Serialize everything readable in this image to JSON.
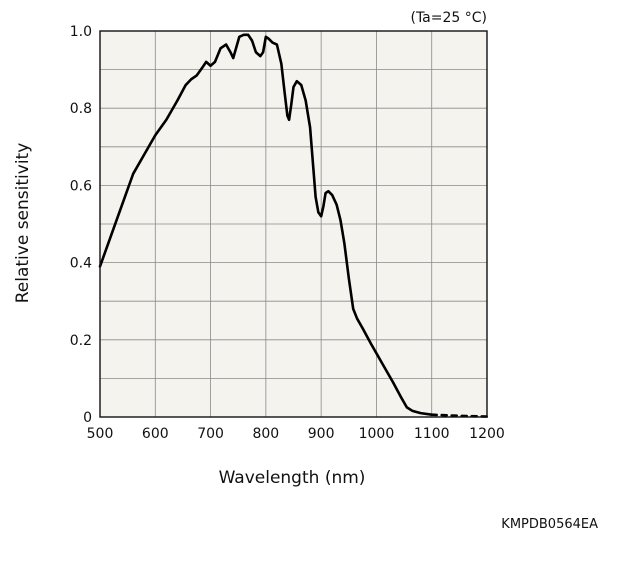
{
  "chart_data": {
    "type": "line",
    "condition": "(Ta=25 °C)",
    "xlabel": "Wavelength (nm)",
    "ylabel": "Relative sensitivity",
    "xlim": [
      500,
      1200
    ],
    "ylim": [
      0,
      1.0
    ],
    "x_ticks": [
      500,
      600,
      700,
      800,
      900,
      1000,
      1100,
      1200
    ],
    "x_tick_labels": [
      "500",
      "600",
      "700",
      "800",
      "900",
      "1000",
      "1100",
      "1200"
    ],
    "y_ticks": [
      0,
      0.2,
      0.4,
      0.6,
      0.8,
      1.0
    ],
    "y_tick_labels": [
      "0",
      "0.2",
      "0.4",
      "0.6",
      "0.8",
      "1.0"
    ],
    "x_minor_step": 100,
    "y_minor_step": 0.1,
    "grid": true,
    "plot_background": "#f5f3ee",
    "grid_color": "#8a8a8a",
    "line_color": "#000000",
    "series": [
      {
        "style": "solid",
        "points": [
          [
            500,
            0.39
          ],
          [
            520,
            0.47
          ],
          [
            540,
            0.55
          ],
          [
            560,
            0.63
          ],
          [
            580,
            0.68
          ],
          [
            600,
            0.73
          ],
          [
            620,
            0.77
          ],
          [
            640,
            0.82
          ],
          [
            655,
            0.86
          ],
          [
            665,
            0.875
          ],
          [
            675,
            0.885
          ],
          [
            685,
            0.905
          ],
          [
            692,
            0.92
          ],
          [
            700,
            0.91
          ],
          [
            708,
            0.92
          ],
          [
            718,
            0.955
          ],
          [
            728,
            0.965
          ],
          [
            736,
            0.945
          ],
          [
            741,
            0.93
          ],
          [
            746,
            0.955
          ],
          [
            752,
            0.985
          ],
          [
            760,
            0.99
          ],
          [
            768,
            0.99
          ],
          [
            775,
            0.975
          ],
          [
            782,
            0.945
          ],
          [
            790,
            0.935
          ],
          [
            795,
            0.945
          ],
          [
            800,
            0.985
          ],
          [
            805,
            0.98
          ],
          [
            812,
            0.97
          ],
          [
            820,
            0.965
          ],
          [
            828,
            0.915
          ],
          [
            834,
            0.84
          ],
          [
            839,
            0.78
          ],
          [
            842,
            0.77
          ],
          [
            846,
            0.81
          ],
          [
            850,
            0.855
          ],
          [
            856,
            0.87
          ],
          [
            864,
            0.86
          ],
          [
            872,
            0.82
          ],
          [
            880,
            0.75
          ],
          [
            885,
            0.66
          ],
          [
            890,
            0.57
          ],
          [
            895,
            0.53
          ],
          [
            900,
            0.52
          ],
          [
            904,
            0.545
          ],
          [
            908,
            0.58
          ],
          [
            913,
            0.585
          ],
          [
            920,
            0.575
          ],
          [
            928,
            0.55
          ],
          [
            935,
            0.51
          ],
          [
            942,
            0.45
          ],
          [
            950,
            0.36
          ],
          [
            958,
            0.28
          ],
          [
            965,
            0.255
          ],
          [
            975,
            0.23
          ],
          [
            990,
            0.19
          ],
          [
            1010,
            0.14
          ],
          [
            1030,
            0.09
          ],
          [
            1045,
            0.05
          ],
          [
            1055,
            0.025
          ],
          [
            1065,
            0.016
          ],
          [
            1080,
            0.01
          ],
          [
            1100,
            0.006
          ]
        ]
      },
      {
        "style": "dashed",
        "points": [
          [
            1100,
            0.006
          ],
          [
            1150,
            0.003
          ],
          [
            1200,
            0.001
          ]
        ]
      }
    ]
  },
  "figure_code": "KMPDB0564EA"
}
